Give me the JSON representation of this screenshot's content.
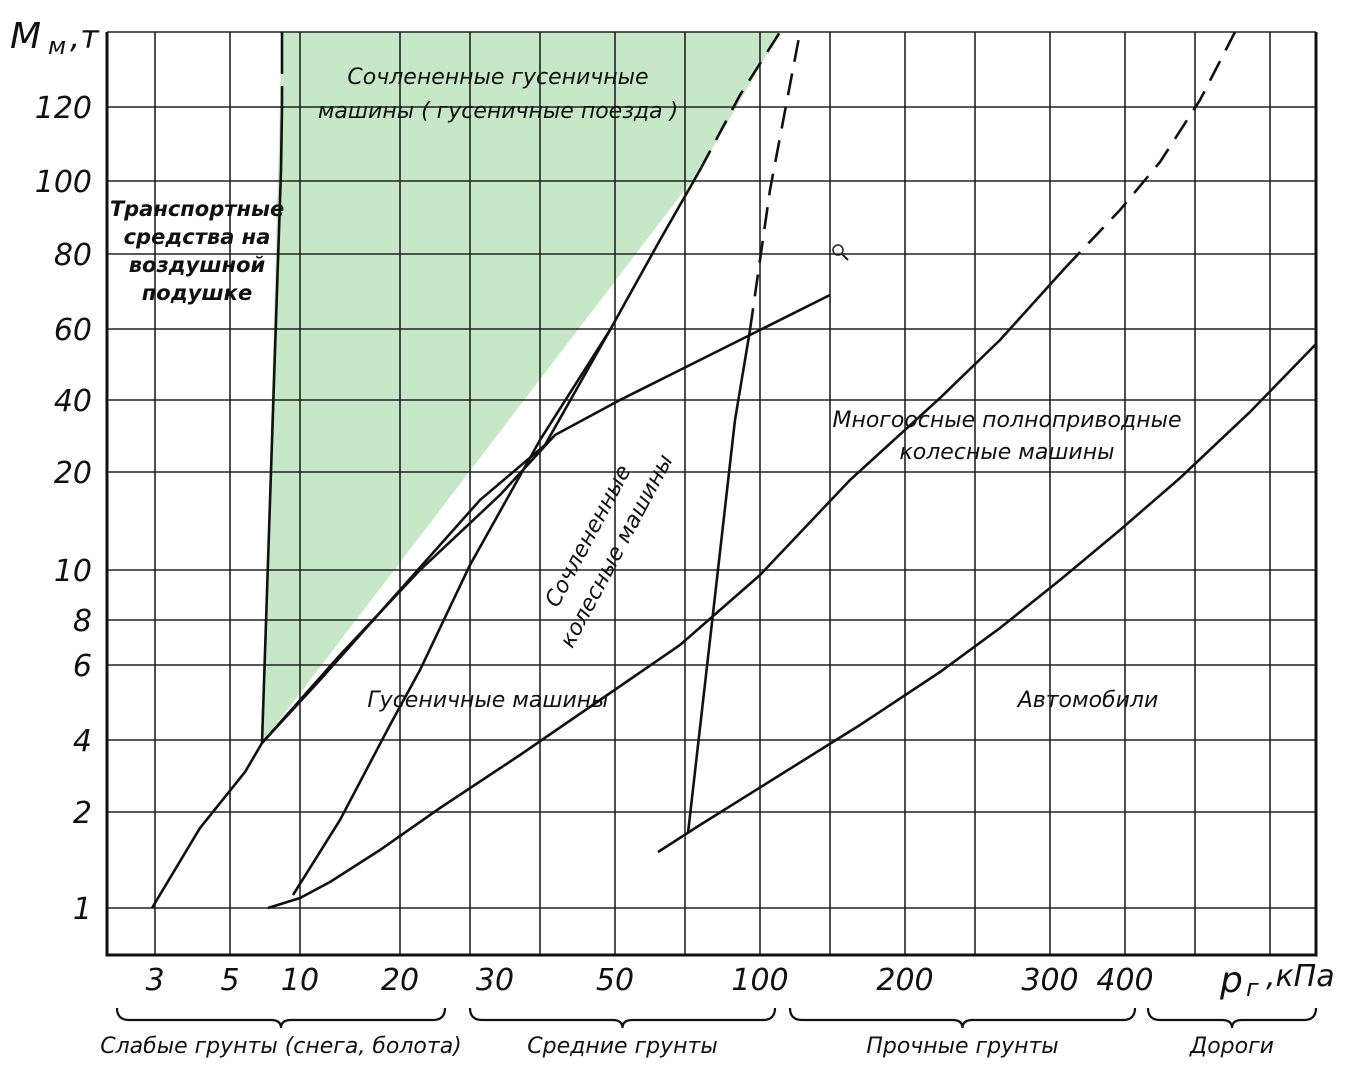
{
  "chart_data": {
    "type": "line",
    "title": "",
    "ylabel": "М м, т",
    "xlabel": "р г, кПа",
    "y_ticks": [
      "1",
      "2",
      "4",
      "6",
      "8",
      "10",
      "20",
      "40",
      "60",
      "80",
      "100",
      "120"
    ],
    "x_ticks": [
      "3",
      "5",
      "10",
      "20",
      "30",
      "50",
      "100",
      "200",
      "300",
      "400"
    ],
    "shaded_region": {
      "label": "Сочлененные гусеничные машины ( гусеничные поезда )",
      "color": "#c6e8c6",
      "vertices": [
        [
          8.5,
          150
        ],
        [
          9.2,
          4
        ],
        [
          100,
          150
        ]
      ]
    },
    "series": [
      {
        "name": "Транспортные средства на воздушной подушке",
        "x": [
          8.5,
          8.6,
          9.2
        ],
        "y": [
          150,
          100,
          4
        ],
        "dashed_above": 120
      },
      {
        "name": "Сочлененные гусеничные машины ( гусеничные поезда )",
        "x": [
          9.2,
          20,
          40,
          60,
          75,
          100
        ],
        "y": [
          4,
          15,
          45,
          95,
          110,
          150
        ],
        "dashed_above": 110
      },
      {
        "name": "Сочлененные колесные машины",
        "x": [
          3,
          5,
          7,
          9.2,
          15,
          25,
          40,
          60,
          90,
          130
        ],
        "y": [
          1,
          2,
          3,
          4,
          8,
          20,
          30,
          40,
          55,
          70
        ]
      },
      {
        "name": "Гусеничные машины",
        "x": [
          9,
          10,
          15,
          22,
          30,
          42,
          60
        ],
        "y": [
          1,
          1.05,
          2,
          4,
          10,
          30,
          60
        ]
      },
      {
        "name": "Гусеничные машины",
        "x": [
          8.5,
          10,
          20,
          40,
          60,
          90,
          130,
          200,
          300,
          400
        ],
        "y": [
          1,
          1.2,
          2.5,
          6,
          10,
          15,
          20,
          35,
          60,
          100
        ],
        "dashed_above": 60
      },
      {
        "name": "Многоосные полноприводные колесные машины",
        "x": [
          80,
          90,
          100,
          110
        ],
        "y": [
          1.8,
          10,
          60,
          150
        ],
        "dashed_above": 60
      },
      {
        "name": "Автомобили",
        "x": [
          70,
          100,
          150,
          200,
          300,
          400,
          500,
          600,
          700
        ],
        "y": [
          1.5,
          2,
          3,
          4,
          8,
          15,
          25,
          40,
          60
        ]
      }
    ],
    "x_zones": [
      {
        "label": "Слабые грунты (снега, болота)",
        "from": 2.5,
        "to": 25
      },
      {
        "label": "Средние грунты",
        "from": 27,
        "to": 110
      },
      {
        "label": "Прочные грунты",
        "from": 120,
        "to": 430
      },
      {
        "label": "Дороги",
        "from": 450,
        "to": 700
      }
    ],
    "annotations": [
      "Транспортные средства на воздушной подушке",
      "Сочлененные гусеничные машины ( гусеничные поезда )",
      "Сочлененные колесные машины",
      "Гусеничные машины",
      "Многоосные полноприводные колесные машины",
      "Автомобили"
    ]
  },
  "labels": {
    "hover_line1": "Транспортные",
    "hover_line2": "средства на",
    "hover_line3": "воздушной",
    "hover_line4": "подушке",
    "tracked_trains_line1": "Сочлененные гусеничные",
    "tracked_trains_line2": "машины ( гусеничные поезда )",
    "art_wheeled_line1": "Сочлененные",
    "art_wheeled_line2": "колесные машины",
    "tracked": "Гусеничные машины",
    "multiaxle_line1": "Многоосные полноприводные",
    "multiaxle_line2": "колесные машины",
    "cars": "Автомобили",
    "y_axis_main": "М",
    "y_axis_sub": "м",
    "y_axis_unit": ",т",
    "x_axis_main": "р",
    "x_axis_sub": "г",
    "x_axis_unit": ",кПа"
  }
}
